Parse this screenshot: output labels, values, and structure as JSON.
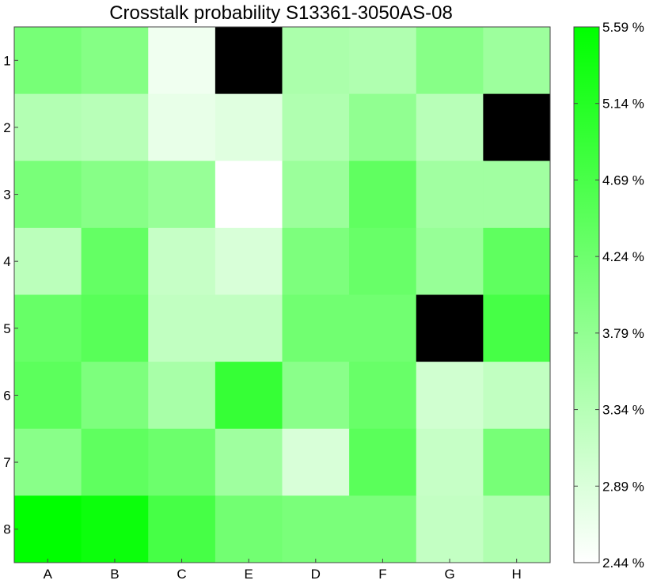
{
  "chart_data": {
    "type": "heatmap",
    "title": "Crosstalk probability S13361-3050AS-08",
    "xlabel": "",
    "ylabel": "",
    "x_categories": [
      "A",
      "B",
      "C",
      "E",
      "D",
      "F",
      "G",
      "H"
    ],
    "y_categories": [
      "1",
      "2",
      "3",
      "4",
      "5",
      "6",
      "7",
      "8"
    ],
    "values": [
      [
        4.12,
        3.95,
        2.62,
        null,
        3.48,
        3.42,
        3.92,
        3.65
      ],
      [
        3.38,
        3.32,
        2.72,
        2.82,
        3.42,
        3.8,
        3.32,
        null
      ],
      [
        4.1,
        3.92,
        3.72,
        2.44,
        3.68,
        4.4,
        3.6,
        3.6
      ],
      [
        3.28,
        4.36,
        3.15,
        2.92,
        4.04,
        4.3,
        3.72,
        4.42
      ],
      [
        4.32,
        4.5,
        3.2,
        3.2,
        4.2,
        4.2,
        null,
        4.72
      ],
      [
        4.45,
        4.04,
        3.52,
        4.92,
        3.88,
        4.3,
        3.02,
        3.2
      ],
      [
        3.9,
        4.42,
        4.26,
        3.62,
        2.92,
        4.48,
        3.15,
        4.12
      ],
      [
        5.59,
        5.44,
        4.72,
        4.18,
        4.08,
        4.08,
        3.18,
        3.42
      ]
    ],
    "missing_color": "#000000",
    "colorbar": {
      "min": 2.44,
      "max": 5.59,
      "ticks": [
        "5.59 %",
        "5.14 %",
        "4.69 %",
        "4.24 %",
        "3.79 %",
        "3.34 %",
        "2.89 %",
        "2.44 %"
      ],
      "low_color": "#ffffff",
      "high_color": "#00ff00"
    }
  }
}
